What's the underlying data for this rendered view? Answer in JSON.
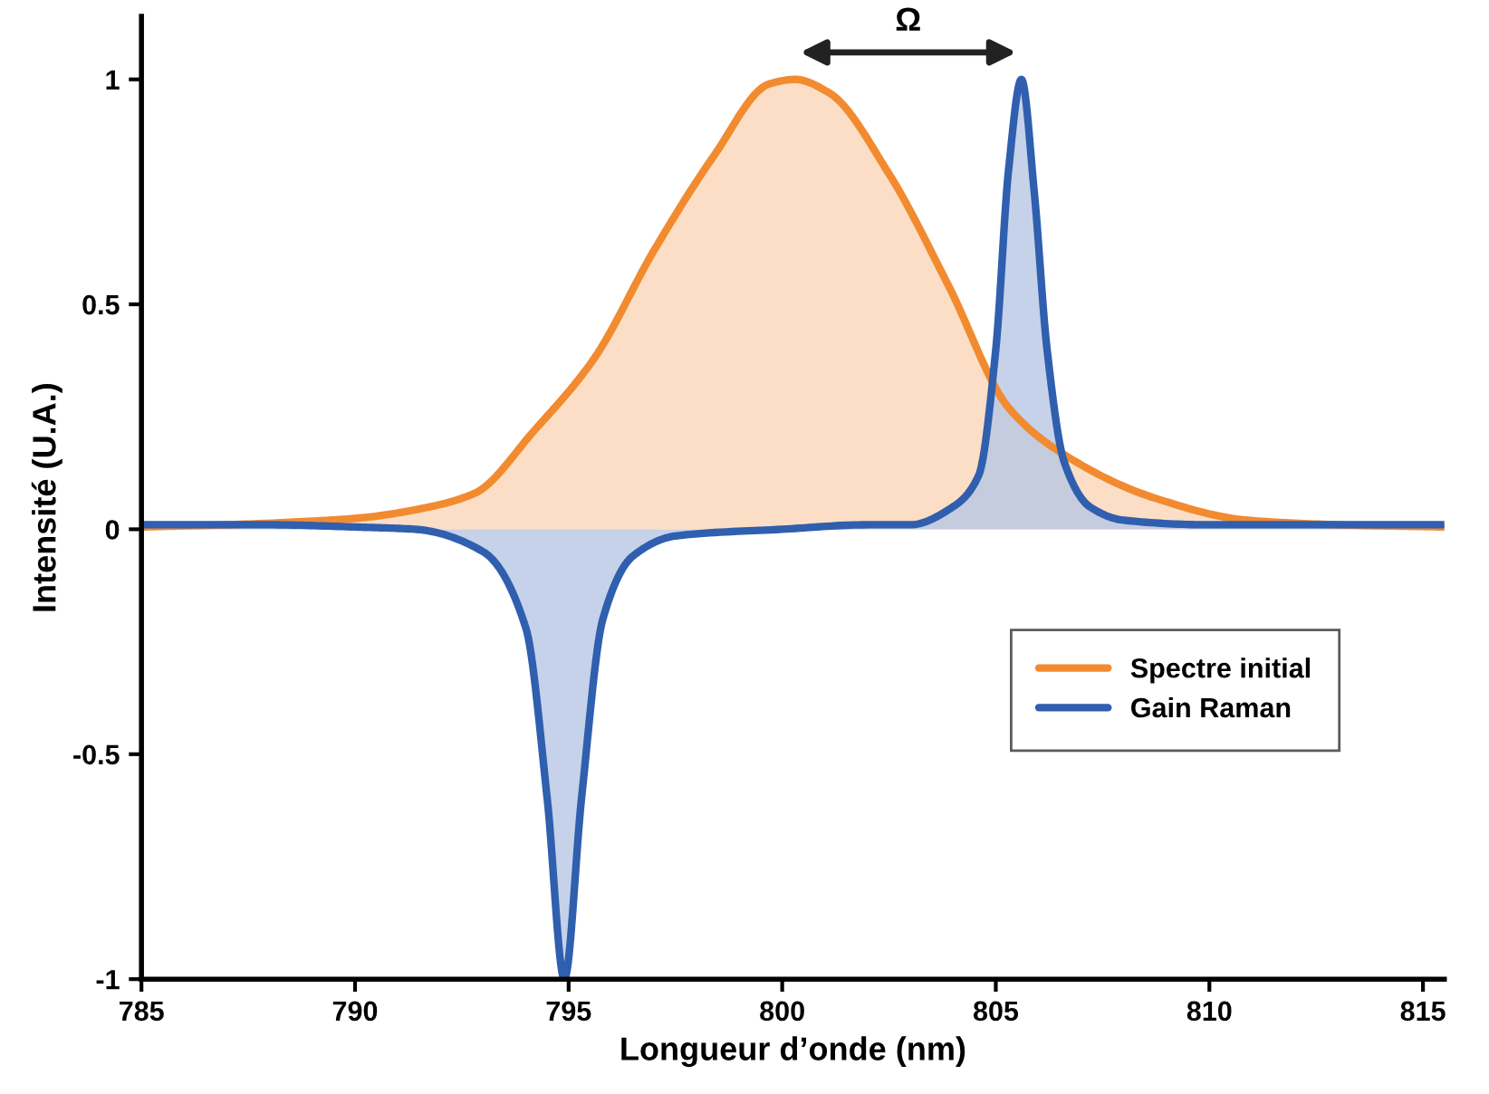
{
  "chart_data": {
    "type": "area",
    "xlabel": "Longueur d’onde (nm)",
    "ylabel": "Intensité (U.A.)",
    "xlim": [
      785,
      815.5
    ],
    "ylim": [
      -1,
      1.14
    ],
    "xticks": [
      785,
      790,
      795,
      800,
      805,
      810,
      815
    ],
    "yticks": [
      -1,
      -0.5,
      0,
      0.5,
      1
    ],
    "legend": "right",
    "marker": "none",
    "line_style": "solid",
    "series": [
      {
        "name": "Spectre initial",
        "color": "#f28a30",
        "x": [
          785,
          787,
          789,
          790.1,
          791.5,
          792.8,
          794.2,
          795.6,
          797.0,
          798.4,
          799.7,
          800.3,
          801.1,
          802.5,
          803.9,
          805.3,
          806.7,
          808.7,
          810.9,
          813,
          815.5
        ],
        "values": [
          0.005,
          0.01,
          0.018,
          0.025,
          0.045,
          0.08,
          0.22,
          0.38,
          0.62,
          0.83,
          0.99,
          1.0,
          0.97,
          0.79,
          0.54,
          0.27,
          0.16,
          0.07,
          0.02,
          0.01,
          0.005
        ]
      },
      {
        "name": "Gain Raman",
        "color": "#2f5fae",
        "x": [
          785,
          788,
          790,
          791.4,
          793,
          794,
          794.5,
          794.9,
          795.3,
          795.8,
          796.5,
          797.5,
          800,
          802,
          803,
          804,
          804.6,
          805,
          805.3,
          805.6,
          805.9,
          806.2,
          806.6,
          807.2,
          808,
          810,
          815.5
        ],
        "values": [
          0.01,
          0.01,
          0.005,
          0,
          -0.05,
          -0.22,
          -0.6,
          -1,
          -0.6,
          -0.2,
          -0.06,
          -0.015,
          0,
          0.01,
          0.01,
          0.05,
          0.12,
          0.4,
          0.8,
          1.0,
          0.75,
          0.4,
          0.15,
          0.05,
          0.02,
          0.01,
          0.01
        ]
      }
    ],
    "annotations": [
      "Ω"
    ]
  }
}
